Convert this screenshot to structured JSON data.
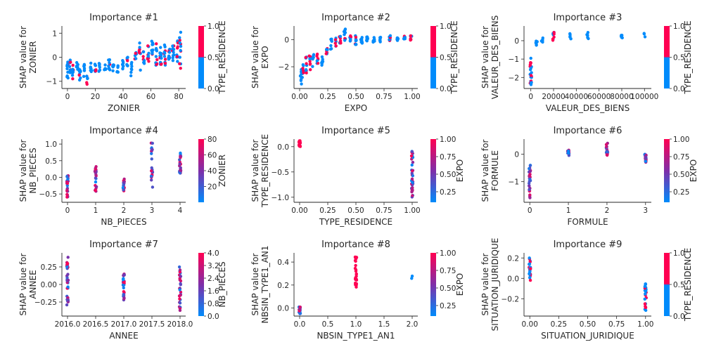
{
  "colors": {
    "blue": "#008bfb",
    "purple": "#7f2ea8",
    "red": "#ff0052",
    "axis": "#262626"
  },
  "chart_data": [
    {
      "type": "scatter",
      "title": "Importance #1",
      "xlabel": "ZONIER",
      "ylabel_lines": [
        "SHAP value for",
        "ZONIER"
      ],
      "xlim": [
        -4,
        85
      ],
      "ylim": [
        -1.3,
        1.3
      ],
      "xticks": [
        0,
        20,
        40,
        60,
        80
      ],
      "yticks": [
        -1,
        0,
        1
      ],
      "colorbar": {
        "label": "TYPE_RESIDENCE",
        "min": 0,
        "max": 1,
        "ticks": [
          "0.0",
          "0.5",
          "1.0"
        ],
        "discrete": true
      },
      "groups": [
        {
          "x": 0,
          "ymin": -1.0,
          "ymax": -0.2,
          "n": 10,
          "c": "mix"
        },
        {
          "x": 2,
          "ymin": -0.8,
          "ymax": -0.1,
          "n": 9,
          "c": "mix"
        },
        {
          "x": 4,
          "ymin": -0.9,
          "ymax": -0.3,
          "n": 8,
          "c": "mix"
        },
        {
          "x": 7,
          "ymin": -0.7,
          "ymax": -0.2,
          "n": 7,
          "c": "blue"
        },
        {
          "x": 9,
          "ymin": -1.0,
          "ymax": -0.4,
          "n": 8,
          "c": "mix"
        },
        {
          "x": 12,
          "ymin": -0.8,
          "ymax": -0.3,
          "n": 7,
          "c": "blue"
        },
        {
          "x": 14,
          "ymin": -1.2,
          "ymax": -0.6,
          "n": 6,
          "c": "mix"
        },
        {
          "x": 17,
          "ymin": -0.6,
          "ymax": -0.2,
          "n": 7,
          "c": "blue"
        },
        {
          "x": 20,
          "ymin": -0.7,
          "ymax": -0.2,
          "n": 8,
          "c": "mix"
        },
        {
          "x": 23,
          "ymin": -0.6,
          "ymax": -0.1,
          "n": 6,
          "c": "blue"
        },
        {
          "x": 27,
          "ymin": -0.6,
          "ymax": -0.3,
          "n": 6,
          "c": "blue"
        },
        {
          "x": 30,
          "ymin": -0.7,
          "ymax": -0.1,
          "n": 8,
          "c": "mix"
        },
        {
          "x": 33,
          "ymin": -0.6,
          "ymax": -0.3,
          "n": 7,
          "c": "blue"
        },
        {
          "x": 36,
          "ymin": -0.7,
          "ymax": -0.3,
          "n": 6,
          "c": "blue"
        },
        {
          "x": 40,
          "ymin": -0.5,
          "ymax": -0.1,
          "n": 8,
          "c": "blue"
        },
        {
          "x": 43,
          "ymin": -0.4,
          "ymax": 0.0,
          "n": 7,
          "c": "mix"
        },
        {
          "x": 46,
          "ymin": -0.8,
          "ymax": -0.2,
          "n": 7,
          "c": "blue"
        },
        {
          "x": 49,
          "ymin": -0.2,
          "ymax": 0.2,
          "n": 7,
          "c": "mix"
        },
        {
          "x": 52,
          "ymin": -0.6,
          "ymax": 0.6,
          "n": 8,
          "c": "mix"
        },
        {
          "x": 55,
          "ymin": -0.3,
          "ymax": 0.5,
          "n": 9,
          "c": "mix"
        },
        {
          "x": 58,
          "ymin": -0.2,
          "ymax": 0.5,
          "n": 9,
          "c": "mix"
        },
        {
          "x": 61,
          "ymin": -0.2,
          "ymax": 0.7,
          "n": 10,
          "c": "mix"
        },
        {
          "x": 64,
          "ymin": -0.4,
          "ymax": 0.6,
          "n": 11,
          "c": "mix"
        },
        {
          "x": 67,
          "ymin": -0.3,
          "ymax": 0.5,
          "n": 12,
          "c": "mix"
        },
        {
          "x": 70,
          "ymin": -0.4,
          "ymax": 0.6,
          "n": 12,
          "c": "mix"
        },
        {
          "x": 73,
          "ymin": -0.2,
          "ymax": 0.4,
          "n": 11,
          "c": "mix"
        },
        {
          "x": 76,
          "ymin": -0.3,
          "ymax": 0.5,
          "n": 10,
          "c": "mix"
        },
        {
          "x": 79,
          "ymin": -0.5,
          "ymax": 0.7,
          "n": 10,
          "c": "mix"
        },
        {
          "x": 81,
          "ymin": -0.7,
          "ymax": 1.1,
          "n": 12,
          "c": "mix"
        }
      ]
    },
    {
      "type": "scatter",
      "title": "Importance #2",
      "xlabel": "EXPO",
      "ylabel_lines": [
        "SHAP value for",
        "EXPO"
      ],
      "xlim": [
        -0.05,
        1.05
      ],
      "ylim": [
        -3.6,
        1.0
      ],
      "xticks": [
        0,
        0.25,
        0.5,
        0.75,
        1.0
      ],
      "xticklabels": [
        "0.00",
        "0.25",
        "0.50",
        "0.75",
        "1.00"
      ],
      "yticks": [
        -2,
        0
      ],
      "colorbar": {
        "label": "TYPE_RESIDENCE",
        "min": 0,
        "max": 1,
        "ticks": [
          "0.0",
          "0.5",
          "1.0"
        ],
        "discrete": true
      },
      "groups": [
        {
          "x": 0.01,
          "ymin": -3.3,
          "ymax": -2.0,
          "n": 8,
          "c": "blue"
        },
        {
          "x": 0.03,
          "ymin": -2.8,
          "ymax": -1.5,
          "n": 8,
          "c": "mix"
        },
        {
          "x": 0.06,
          "ymin": -2.6,
          "ymax": -1.2,
          "n": 9,
          "c": "mix"
        },
        {
          "x": 0.09,
          "ymin": -2.3,
          "ymax": -0.8,
          "n": 8,
          "c": "mix"
        },
        {
          "x": 0.12,
          "ymin": -2.0,
          "ymax": -0.8,
          "n": 7,
          "c": "blue"
        },
        {
          "x": 0.16,
          "ymin": -1.8,
          "ymax": -1.0,
          "n": 7,
          "c": "mix"
        },
        {
          "x": 0.2,
          "ymin": -1.9,
          "ymax": -1.2,
          "n": 7,
          "c": "blue"
        },
        {
          "x": 0.24,
          "ymin": -1.2,
          "ymax": -0.4,
          "n": 7,
          "c": "mix"
        },
        {
          "x": 0.28,
          "ymin": -0.9,
          "ymax": 0.1,
          "n": 7,
          "c": "blue"
        },
        {
          "x": 0.32,
          "ymin": -0.5,
          "ymax": 0.3,
          "n": 7,
          "c": "mix"
        },
        {
          "x": 0.36,
          "ymin": -0.3,
          "ymax": 0.3,
          "n": 8,
          "c": "mix"
        },
        {
          "x": 0.4,
          "ymin": -0.2,
          "ymax": 0.8,
          "n": 8,
          "c": "mix"
        },
        {
          "x": 0.45,
          "ymin": -0.3,
          "ymax": 0.3,
          "n": 9,
          "c": "mix"
        },
        {
          "x": 0.5,
          "ymin": -0.4,
          "ymax": 0.3,
          "n": 9,
          "c": "mix"
        },
        {
          "x": 0.55,
          "ymin": -0.3,
          "ymax": 0.2,
          "n": 8,
          "c": "mix"
        },
        {
          "x": 0.6,
          "ymin": -0.2,
          "ymax": 0.3,
          "n": 8,
          "c": "blue"
        },
        {
          "x": 0.66,
          "ymin": -0.3,
          "ymax": 0.2,
          "n": 8,
          "c": "mix"
        },
        {
          "x": 0.72,
          "ymin": -0.2,
          "ymax": 0.2,
          "n": 8,
          "c": "blue"
        },
        {
          "x": 0.8,
          "ymin": -0.1,
          "ymax": 0.3,
          "n": 8,
          "c": "mix"
        },
        {
          "x": 0.87,
          "ymin": -0.1,
          "ymax": 0.2,
          "n": 7,
          "c": "blue"
        },
        {
          "x": 0.93,
          "ymin": -0.1,
          "ymax": 0.3,
          "n": 7,
          "c": "mix"
        },
        {
          "x": 0.99,
          "ymin": -0.2,
          "ymax": 0.3,
          "n": 8,
          "c": "mix"
        }
      ]
    },
    {
      "type": "scatter",
      "title": "Importance #3",
      "xlabel": "VALEUR_DES_BIENS",
      "ylabel_lines": [
        "SHAP value for",
        "VALEUR_DES_BIENS"
      ],
      "xlim": [
        -6000,
        106000
      ],
      "ylim": [
        -2.6,
        0.8
      ],
      "xticks": [
        0,
        20000,
        40000,
        60000,
        80000,
        100000
      ],
      "yticks": [
        -2,
        -1,
        0
      ],
      "colorbar": {
        "label": "TYPE_RESIDENCE",
        "min": 0,
        "max": 1,
        "ticks": [
          "0.0",
          "0.5",
          "1.0"
        ],
        "discrete": true
      },
      "groups": [
        {
          "x": 0,
          "ymin": -2.4,
          "ymax": -0.8,
          "n": 20,
          "c": "mix"
        },
        {
          "x": 5000,
          "ymin": -0.3,
          "ymax": 0.0,
          "n": 6,
          "c": "blue"
        },
        {
          "x": 10000,
          "ymin": -0.2,
          "ymax": 0.2,
          "n": 6,
          "c": "blue"
        },
        {
          "x": 20000,
          "ymin": 0.0,
          "ymax": 0.5,
          "n": 9,
          "c": "mix"
        },
        {
          "x": 35000,
          "ymin": 0.1,
          "ymax": 0.4,
          "n": 6,
          "c": "blue"
        },
        {
          "x": 50000,
          "ymin": 0.1,
          "ymax": 0.5,
          "n": 6,
          "c": "blue"
        },
        {
          "x": 80000,
          "ymin": 0.1,
          "ymax": 0.5,
          "n": 5,
          "c": "blue"
        },
        {
          "x": 100000,
          "ymin": 0.2,
          "ymax": 0.4,
          "n": 3,
          "c": "blue"
        }
      ]
    },
    {
      "type": "scatter",
      "title": "Importance #4",
      "xlabel": "NB_PIECES",
      "ylabel_lines": [
        "SHAP value for",
        "NB_PIECES"
      ],
      "xlim": [
        -0.2,
        4.2
      ],
      "ylim": [
        -0.75,
        1.15
      ],
      "xticks": [
        0,
        1,
        2,
        3,
        4
      ],
      "yticks": [
        -0.5,
        0.0,
        0.5,
        1.0
      ],
      "yticklabels": [
        "−0.5",
        "0.0",
        "0.5",
        "1.0"
      ],
      "colorbar": {
        "label": "ZONIER",
        "min": 0,
        "max": 80,
        "ticks": [
          "20",
          "40",
          "60",
          "80"
        ],
        "tickvalues": [
          20,
          40,
          60,
          80
        ],
        "discrete": false
      },
      "groups": [
        {
          "x": 0,
          "ymin": -0.65,
          "ymax": 0.05,
          "n": 22,
          "c": "grad"
        },
        {
          "x": 1,
          "ymin": -0.45,
          "ymax": 0.4,
          "n": 22,
          "c": "grad"
        },
        {
          "x": 2,
          "ymin": -0.45,
          "ymax": -0.05,
          "n": 20,
          "c": "grad"
        },
        {
          "x": 3,
          "ymin": -0.3,
          "ymax": 1.05,
          "n": 22,
          "c": "grad"
        },
        {
          "x": 4,
          "ymin": 0.1,
          "ymax": 0.75,
          "n": 20,
          "c": "grad"
        }
      ]
    },
    {
      "type": "scatter",
      "title": "Importance #5",
      "xlabel": "TYPE_RESIDENCE",
      "ylabel_lines": [
        "SHAP value for",
        "TYPE_RESIDENCE"
      ],
      "xlim": [
        -0.05,
        1.05
      ],
      "ylim": [
        -1.1,
        0.15
      ],
      "xticks": [
        0,
        0.25,
        0.5,
        0.75,
        1.0
      ],
      "xticklabels": [
        "0.00",
        "0.25",
        "0.50",
        "0.75",
        "1.00"
      ],
      "yticks": [
        -1.0,
        -0.5,
        0.0
      ],
      "yticklabels": [
        "−1.0",
        "−0.5",
        "0.0"
      ],
      "colorbar": {
        "label": "EXPO",
        "min": 0.1,
        "max": 1.0,
        "ticks": [
          "0.25",
          "0.50",
          "0.75",
          "1.00"
        ],
        "tickvalues": [
          0.25,
          0.5,
          0.75,
          1.0
        ],
        "discrete": false
      },
      "groups": [
        {
          "x": 0,
          "ymin": 0.0,
          "ymax": 0.12,
          "n": 18,
          "c": "red"
        },
        {
          "x": 1,
          "ymin": -1.0,
          "ymax": -0.05,
          "n": 35,
          "c": "grad"
        }
      ]
    },
    {
      "type": "scatter",
      "title": "Importance #6",
      "xlabel": "FORMULE",
      "ylabel_lines": [
        "SHAP value for",
        "FORMULE"
      ],
      "xlim": [
        -0.15,
        3.15
      ],
      "ylim": [
        -1.75,
        0.55
      ],
      "xticks": [
        0,
        1,
        2,
        3
      ],
      "yticks": [
        -1,
        0
      ],
      "colorbar": {
        "label": "EXPO",
        "min": 0.1,
        "max": 1.0,
        "ticks": [
          "0.25",
          "0.50",
          "0.75",
          "1.00"
        ],
        "tickvalues": [
          0.25,
          0.5,
          0.75,
          1.0
        ],
        "discrete": false
      },
      "groups": [
        {
          "x": 0,
          "ymin": -1.6,
          "ymax": -0.3,
          "n": 30,
          "c": "grad"
        },
        {
          "x": 1,
          "ymin": -0.05,
          "ymax": 0.15,
          "n": 14,
          "c": "grad"
        },
        {
          "x": 2,
          "ymin": -0.05,
          "ymax": 0.4,
          "n": 20,
          "c": "grad"
        },
        {
          "x": 3,
          "ymin": -0.3,
          "ymax": 0.0,
          "n": 18,
          "c": "grad"
        }
      ]
    },
    {
      "type": "scatter",
      "title": "Importance #7",
      "xlabel": "ANNEE",
      "ylabel_lines": [
        "SHAP value for",
        "ANNEE"
      ],
      "xlim": [
        2015.9,
        2018.1
      ],
      "ylim": [
        -0.45,
        0.45
      ],
      "xticks": [
        2016.0,
        2016.5,
        2017.0,
        2017.5,
        2018.0
      ],
      "xticklabels": [
        "2016.0",
        "2016.5",
        "2017.0",
        "2017.5",
        "2018.0"
      ],
      "yticks": [
        -0.25,
        0.0,
        0.25
      ],
      "yticklabels": [
        "−0.25",
        "0.00",
        "0.25"
      ],
      "colorbar": {
        "label": "NB_PIECES",
        "min": 0,
        "max": 4,
        "ticks": [
          "0.0",
          "0.8",
          "1.6",
          "2.4",
          "3.2",
          "4.0"
        ],
        "tickvalues": [
          0,
          0.8,
          1.6,
          2.4,
          3.2,
          4.0
        ],
        "discrete": false
      },
      "groups": [
        {
          "x": 2016.0,
          "ymin": -0.3,
          "ymax": 0.4,
          "n": 30,
          "c": "grad"
        },
        {
          "x": 2017.0,
          "ymin": -0.22,
          "ymax": 0.15,
          "n": 26,
          "c": "grad"
        },
        {
          "x": 2018.0,
          "ymin": -0.42,
          "ymax": 0.25,
          "n": 30,
          "c": "grad"
        }
      ]
    },
    {
      "type": "scatter",
      "title": "Importance #8",
      "xlabel": "NBSIN_TYPE1_AN1",
      "ylabel_lines": [
        "SHAP value for",
        "NBSIN_TYPE1_AN1"
      ],
      "xlim": [
        -0.1,
        2.1
      ],
      "ylim": [
        -0.07,
        0.48
      ],
      "xticks": [
        0,
        0.5,
        1.0,
        1.5,
        2.0
      ],
      "xticklabels": [
        "0.0",
        "0.5",
        "1.0",
        "1.5",
        "2.0"
      ],
      "yticks": [
        0.0,
        0.2,
        0.4
      ],
      "yticklabels": [
        "0.0",
        "0.2",
        "0.4"
      ],
      "colorbar": {
        "label": "EXPO",
        "min": 0.1,
        "max": 1.0,
        "ticks": [
          "0.25",
          "0.50",
          "0.75",
          "1.00"
        ],
        "tickvalues": [
          0.25,
          0.5,
          0.75,
          1.0
        ],
        "discrete": false
      },
      "groups": [
        {
          "x": 0,
          "ymin": -0.05,
          "ymax": 0.01,
          "n": 18,
          "c": "grad"
        },
        {
          "x": 1,
          "ymin": 0.18,
          "ymax": 0.45,
          "n": 25,
          "c": "red"
        },
        {
          "x": 2,
          "ymin": 0.2,
          "ymax": 0.28,
          "n": 2,
          "c": "mix"
        }
      ]
    },
    {
      "type": "scatter",
      "title": "Importance #9",
      "xlabel": "SITUATION_JURIDIQUE",
      "ylabel_lines": [
        "SHAP value for",
        "SITUATION_JURIDIQUE"
      ],
      "xlim": [
        -0.05,
        1.05
      ],
      "ylim": [
        -0.37,
        0.25
      ],
      "xticks": [
        0,
        0.25,
        0.5,
        0.75,
        1.0
      ],
      "xticklabels": [
        "0.00",
        "0.25",
        "0.50",
        "0.75",
        "1.00"
      ],
      "yticks": [
        -0.2,
        0.0,
        0.2
      ],
      "yticklabels": [
        "−0.2",
        "0.0",
        "0.2"
      ],
      "colorbar": {
        "label": "TYPE_RESIDENCE",
        "min": 0,
        "max": 1,
        "ticks": [
          "0.0",
          "0.5",
          "1.0"
        ],
        "discrete": true
      },
      "groups": [
        {
          "x": 0,
          "ymin": -0.02,
          "ymax": 0.21,
          "n": 25,
          "c": "mix"
        },
        {
          "x": 1,
          "ymin": -0.34,
          "ymax": -0.05,
          "n": 25,
          "c": "mix"
        }
      ]
    }
  ]
}
